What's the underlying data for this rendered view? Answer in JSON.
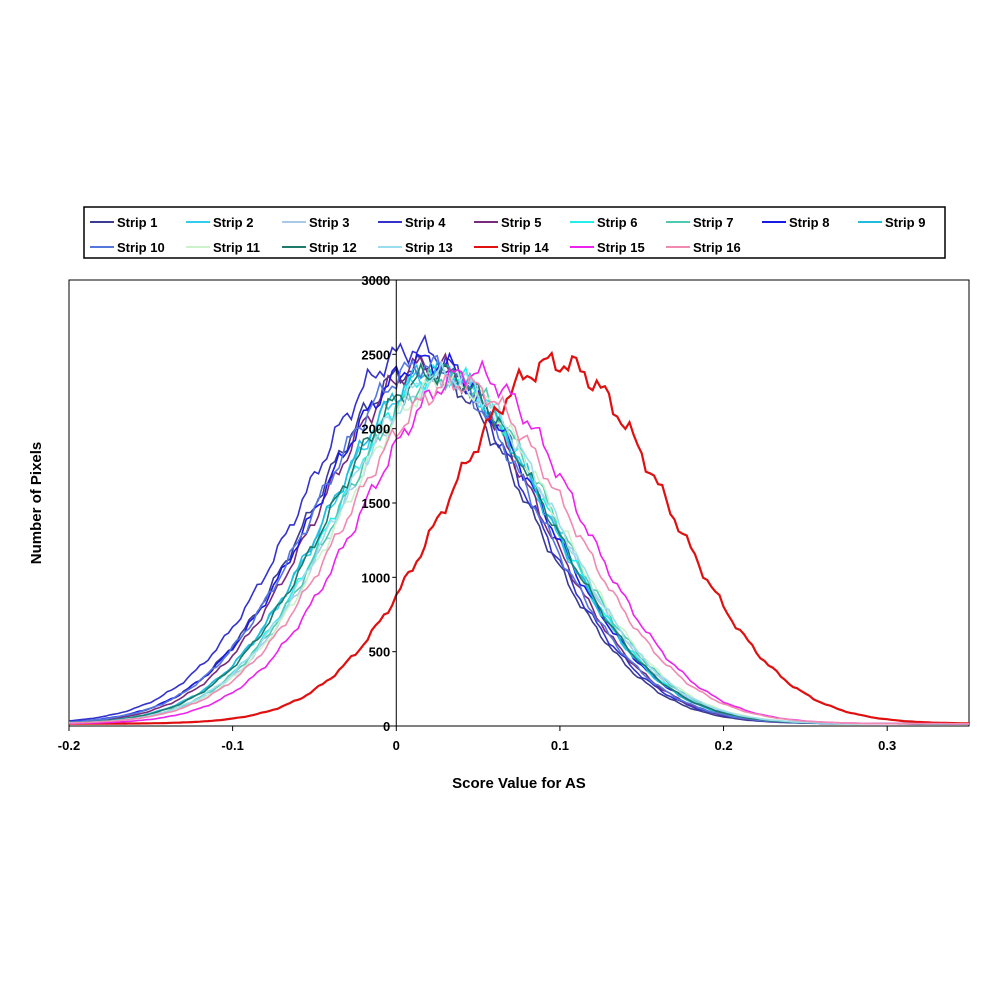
{
  "chart_data": {
    "type": "line",
    "xlabel": "Score Value for  AS",
    "ylabel": "Number of Pixels",
    "xlim": [
      -0.2,
      0.35
    ],
    "ylim": [
      0,
      3000
    ],
    "xticks": [
      "-0.2",
      "-0.1",
      "0",
      "0.1",
      "0.2",
      "0.3"
    ],
    "yticks": [
      "0",
      "500",
      "1000",
      "1500",
      "2000",
      "2500",
      "3000"
    ],
    "legend_position": "top",
    "grid": false,
    "series": [
      {
        "name": "Strip 1",
        "color": "#3b3b8f",
        "mu": 0.015,
        "sigma": 0.066,
        "peak": 2400
      },
      {
        "name": "Strip 2",
        "color": "#33ccee",
        "mu": 0.025,
        "sigma": 0.066,
        "peak": 2360
      },
      {
        "name": "Strip 3",
        "color": "#a8c8e8",
        "mu": 0.03,
        "sigma": 0.065,
        "peak": 2320
      },
      {
        "name": "Strip 4",
        "color": "#3333cc",
        "mu": 0.012,
        "sigma": 0.068,
        "peak": 2520
      },
      {
        "name": "Strip 5",
        "color": "#7a2a7a",
        "mu": 0.02,
        "sigma": 0.066,
        "peak": 2420
      },
      {
        "name": "Strip 6",
        "color": "#22eeee",
        "mu": 0.028,
        "sigma": 0.065,
        "peak": 2360
      },
      {
        "name": "Strip 7",
        "color": "#4fc9b0",
        "mu": 0.03,
        "sigma": 0.066,
        "peak": 2330
      },
      {
        "name": "Strip 8",
        "color": "#1a1ae6",
        "mu": 0.02,
        "sigma": 0.068,
        "peak": 2440
      },
      {
        "name": "Strip 9",
        "color": "#22bbdd",
        "mu": 0.025,
        "sigma": 0.066,
        "peak": 2380
      },
      {
        "name": "Strip 10",
        "color": "#5577dd",
        "mu": 0.018,
        "sigma": 0.067,
        "peak": 2410
      },
      {
        "name": "Strip 11",
        "color": "#ccf2cc",
        "mu": 0.032,
        "sigma": 0.066,
        "peak": 2300
      },
      {
        "name": "Strip 12",
        "color": "#1e7a6a",
        "mu": 0.026,
        "sigma": 0.066,
        "peak": 2360
      },
      {
        "name": "Strip 13",
        "color": "#99ddee",
        "mu": 0.03,
        "sigma": 0.066,
        "peak": 2340
      },
      {
        "name": "Strip 14",
        "color": "#e01010",
        "mu": 0.098,
        "sigma": 0.068,
        "peak": 2430
      },
      {
        "name": "Strip 15",
        "color": "#ee22ee",
        "mu": 0.045,
        "sigma": 0.066,
        "peak": 2360
      },
      {
        "name": "Strip 16",
        "color": "#f08ab0",
        "mu": 0.038,
        "sigma": 0.068,
        "peak": 2290
      }
    ]
  }
}
